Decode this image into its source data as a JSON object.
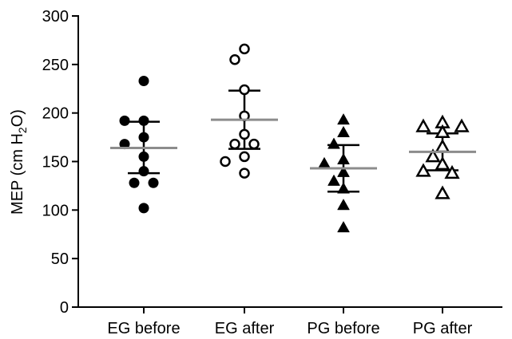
{
  "chart_data": {
    "type": "scatter",
    "title": "",
    "xlabel": "",
    "ylabel": {
      "prefix": "MEP (cm H",
      "subscript": "2",
      "suffix": "O)"
    },
    "ylim": [
      0,
      300
    ],
    "yticks": [
      0,
      50,
      100,
      150,
      200,
      250,
      300
    ],
    "categories": [
      "EG before",
      "EG after",
      "PG before",
      "PG after"
    ],
    "series": [
      {
        "marker": "filled-circle",
        "values": [
          233,
          192,
          192,
          175,
          168,
          155,
          140,
          128,
          128,
          102
        ],
        "mean": 164,
        "sd_low": 138,
        "sd_high": 191
      },
      {
        "marker": "open-circle",
        "values": [
          266,
          255,
          224,
          197,
          178,
          168,
          168,
          155,
          150,
          138
        ],
        "mean": 193,
        "sd_low": 163,
        "sd_high": 223
      },
      {
        "marker": "filled-triangle",
        "values": [
          193,
          180,
          168,
          152,
          148,
          139,
          130,
          122,
          105,
          82
        ],
        "mean": 143,
        "sd_low": 119,
        "sd_high": 167
      },
      {
        "marker": "open-triangle",
        "values": [
          190,
          186,
          186,
          180,
          165,
          155,
          147,
          140,
          138,
          117
        ],
        "mean": 160,
        "sd_low": 141,
        "sd_high": 179
      }
    ],
    "colors": {
      "points": "#000000",
      "mean_line": "#8c8c8c",
      "sd_bars": "#000000",
      "axis": "#000000"
    },
    "grid": false,
    "legend": "none"
  }
}
